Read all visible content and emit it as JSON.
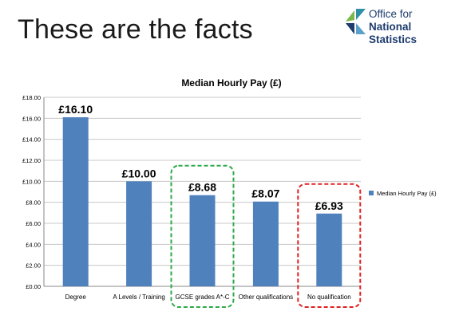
{
  "slide": {
    "title": "These are the facts"
  },
  "logo": {
    "line1": "Office for",
    "line2": "National Statistics",
    "colors": {
      "dark": "#1e3c6e",
      "green": "#7ab648",
      "teal": "#2e8fa6"
    }
  },
  "chart_data": {
    "type": "bar",
    "title": "Median Hourly Pay (£)",
    "categories": [
      "Degree",
      "A Levels / Training",
      "GCSE grades A*-C",
      "Other qualifications",
      "No qualification"
    ],
    "series": [
      {
        "name": "Median Hourly Pay (£)",
        "values": [
          16.1,
          10.0,
          8.68,
          8.07,
          6.93
        ],
        "color": "#4f81bd"
      }
    ],
    "data_labels": [
      "£16.10",
      "£10.00",
      "£8.68",
      "£8.07",
      "£6.93"
    ],
    "ylim": [
      0,
      18
    ],
    "yticks": [
      0,
      2,
      4,
      6,
      8,
      10,
      12,
      14,
      16,
      18
    ],
    "ytick_labels": [
      "£0.00",
      "£2.00",
      "£4.00",
      "£6.00",
      "£8.00",
      "£10.00",
      "£12.00",
      "£14.00",
      "£16.00",
      "£18.00"
    ],
    "grid": true,
    "legend_position": "right",
    "highlights": [
      {
        "category": "GCSE grades A*-C",
        "color": "#2eaa4a",
        "style": "dashed"
      },
      {
        "category": "No qualification",
        "color": "#e02020",
        "style": "dashed"
      }
    ]
  }
}
